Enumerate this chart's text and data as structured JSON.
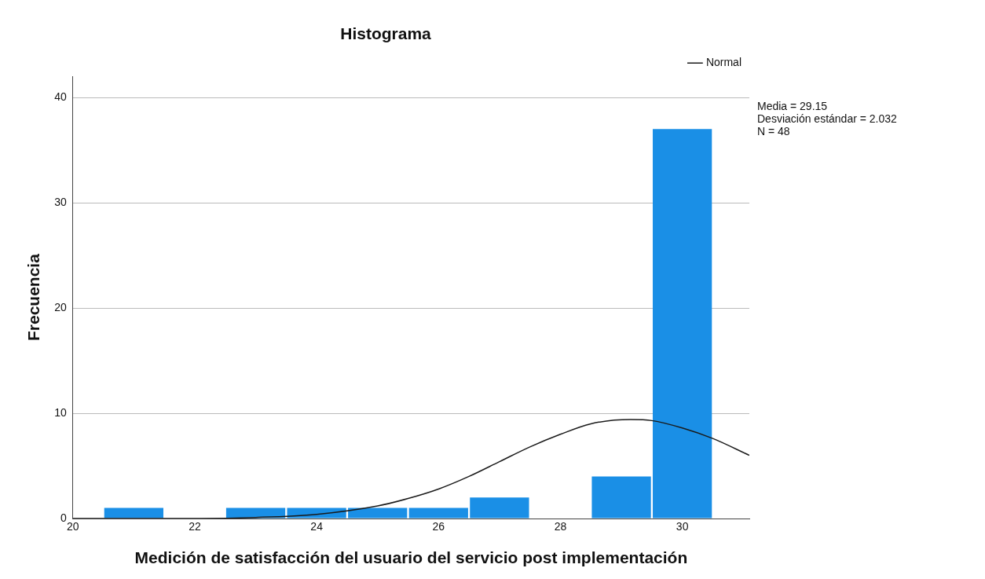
{
  "chart_data": {
    "type": "histogram",
    "title": "Histograma",
    "xlabel": "Medición de satisfacción del usuario del servicio post implementación",
    "ylabel": "Frecuencia",
    "bins": [
      20.5,
      21.5,
      22.5,
      23.5,
      24.5,
      25.5,
      26.5,
      27.5,
      28.5,
      29.5,
      30.5
    ],
    "values": [
      1,
      0,
      1,
      1,
      1,
      1,
      2,
      0,
      4,
      37
    ],
    "color": "#1a8fe6",
    "series": [
      {
        "type": "line",
        "name": "Normal",
        "color": "#1a1a1a",
        "x": [
          20,
          21,
          22,
          23,
          24,
          25,
          25.5,
          26,
          26.5,
          27,
          27.5,
          28,
          28.5,
          29.15,
          29.5,
          30,
          30.5,
          31.1
        ],
        "values": [
          0,
          0,
          0,
          0.1,
          0.4,
          1.2,
          1.9,
          2.8,
          4,
          5.4,
          6.8,
          8,
          9,
          9.4,
          9.3,
          8.6,
          7.6,
          6
        ]
      }
    ],
    "xlim": [
      20,
      31.1
    ],
    "xticks": [
      20,
      22,
      24,
      26,
      28,
      30
    ],
    "ylim": [
      0,
      42
    ],
    "yticks": [
      0,
      10,
      20,
      30,
      40
    ],
    "grid": "y",
    "legend": "top right",
    "annotations": [
      "Media = 29.15",
      "Desviación estándar = 2.032",
      "N = 48"
    ]
  }
}
